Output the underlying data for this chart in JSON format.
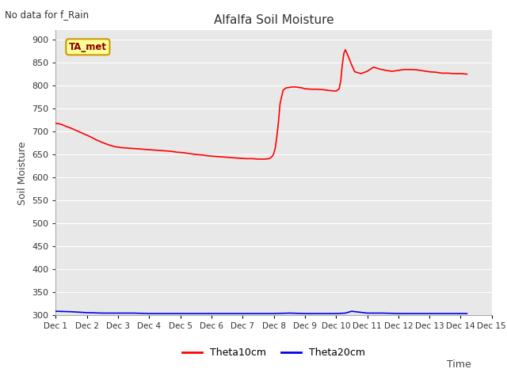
{
  "title": "Alfalfa Soil Moisture",
  "no_data_label": "No data for f_Rain",
  "ylabel": "Soil Moisture",
  "xlabel": "Time",
  "ylim": [
    300,
    920
  ],
  "yticks": [
    300,
    350,
    400,
    450,
    500,
    550,
    600,
    650,
    700,
    750,
    800,
    850,
    900
  ],
  "xtick_labels": [
    "Dec 1",
    "Dec 2",
    "Dec 3",
    "Dec 4",
    "Dec 5",
    "Dec 6",
    "Dec 7",
    "Dec 8",
    "Dec 9",
    "Dec 10",
    "Dec 11",
    "Dec 12",
    "Dec 13",
    "Dec 14",
    "Dec 15"
  ],
  "fig_bg_color": "#ffffff",
  "plot_bg_color": "#e8e8e8",
  "theta10_color": "#ff0000",
  "theta20_color": "#0000ee",
  "legend_box_facecolor": "#ffff99",
  "legend_box_edgecolor": "#cc9900",
  "legend_text_color": "#880000",
  "legend_label": "TA_met",
  "series1_label": "Theta10cm",
  "series2_label": "Theta20cm",
  "theta10_x": [
    1.0,
    1.1,
    1.2,
    1.3,
    1.5,
    1.7,
    1.9,
    2.1,
    2.3,
    2.5,
    2.7,
    2.9,
    3.1,
    3.3,
    3.5,
    3.7,
    3.9,
    4.1,
    4.3,
    4.5,
    4.7,
    4.9,
    5.1,
    5.3,
    5.5,
    5.7,
    5.9,
    6.1,
    6.3,
    6.5,
    6.7,
    6.9,
    7.1,
    7.3,
    7.5,
    7.7,
    7.85,
    7.9,
    7.95,
    8.0,
    8.05,
    8.1,
    8.15,
    8.2,
    8.3,
    8.4,
    8.5,
    8.6,
    8.7,
    8.8,
    8.9,
    9.0,
    9.2,
    9.4,
    9.6,
    9.8,
    10.0,
    10.1,
    10.15,
    10.2,
    10.25,
    10.3,
    10.4,
    10.5,
    10.6,
    10.8,
    11.0,
    11.2,
    11.4,
    11.6,
    11.8,
    12.0,
    12.2,
    12.4,
    12.6,
    12.8,
    13.0,
    13.2,
    13.4,
    13.6,
    13.8,
    14.0,
    14.2
  ],
  "theta10_y": [
    718,
    717,
    715,
    712,
    707,
    701,
    695,
    689,
    682,
    676,
    671,
    667,
    665,
    664,
    663,
    662,
    661,
    660,
    659,
    658,
    657,
    655,
    654,
    652,
    650,
    649,
    647,
    646,
    645,
    644,
    643,
    642,
    641,
    641,
    640,
    640,
    641,
    643,
    646,
    652,
    665,
    690,
    720,
    760,
    790,
    795,
    796,
    797,
    797,
    796,
    795,
    793,
    792,
    792,
    791,
    789,
    788,
    793,
    810,
    845,
    870,
    878,
    862,
    845,
    830,
    826,
    831,
    840,
    836,
    833,
    831,
    833,
    835,
    835,
    834,
    832,
    830,
    829,
    827,
    827,
    826,
    826,
    825
  ],
  "theta20_x": [
    1.0,
    1.5,
    2.0,
    2.5,
    3.0,
    3.5,
    4.0,
    4.5,
    5.0,
    5.5,
    6.0,
    6.5,
    7.0,
    7.5,
    8.0,
    8.5,
    9.0,
    9.5,
    10.0,
    10.3,
    10.5,
    11.0,
    11.5,
    12.0,
    12.5,
    13.0,
    13.5,
    14.0,
    14.2
  ],
  "theta20_y": [
    309,
    308,
    306,
    305,
    305,
    305,
    304,
    304,
    304,
    304,
    304,
    304,
    304,
    304,
    304,
    305,
    304,
    304,
    304,
    305,
    309,
    305,
    305,
    304,
    304,
    304,
    304,
    304,
    304
  ]
}
